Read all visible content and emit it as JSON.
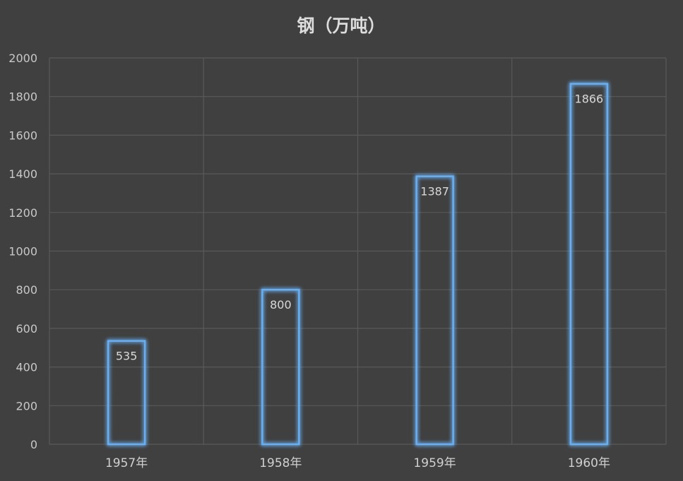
{
  "chart_data": {
    "type": "bar",
    "title": "钢（万吨）",
    "categories": [
      "1957年",
      "1958年",
      "1959年",
      "1960年"
    ],
    "values": [
      535,
      800,
      1387,
      1866
    ],
    "ylim": [
      0,
      2000
    ],
    "yticks": [
      0,
      200,
      400,
      600,
      800,
      1000,
      1200,
      1400,
      1600,
      1800,
      2000
    ],
    "grid": true,
    "legend": "none",
    "colors": {
      "background": "#404040",
      "bar_outline": "#6aaef0",
      "bar_glow": "#4a90e2",
      "grid": "#595959",
      "text": "#d0d0d0"
    }
  }
}
